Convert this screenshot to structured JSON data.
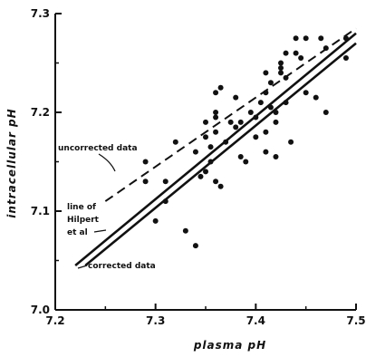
{
  "chart_data": {
    "type": "scatter",
    "title": "",
    "xlabel": "plasma pH",
    "ylabel": "intracellular pH",
    "xlim": [
      7.2,
      7.5
    ],
    "ylim": [
      7.0,
      7.3
    ],
    "xticks": [
      7.2,
      7.3,
      7.4,
      7.5
    ],
    "yticks": [
      7.0,
      7.1,
      7.2,
      7.3
    ],
    "xtick_labels": [
      "7.2",
      "7.3",
      "7.4",
      "7.5"
    ],
    "ytick_labels": [
      "7.0",
      "7.1",
      "7.2",
      "7.3"
    ],
    "grid": false,
    "legend": "none",
    "points": [
      {
        "x": 7.29,
        "y": 7.13
      },
      {
        "x": 7.29,
        "y": 7.15
      },
      {
        "x": 7.3,
        "y": 7.09
      },
      {
        "x": 7.31,
        "y": 7.11
      },
      {
        "x": 7.31,
        "y": 7.13
      },
      {
        "x": 7.32,
        "y": 7.17
      },
      {
        "x": 7.33,
        "y": 7.08
      },
      {
        "x": 7.34,
        "y": 7.065
      },
      {
        "x": 7.34,
        "y": 7.16
      },
      {
        "x": 7.345,
        "y": 7.135
      },
      {
        "x": 7.35,
        "y": 7.14
      },
      {
        "x": 7.35,
        "y": 7.175
      },
      {
        "x": 7.35,
        "y": 7.19
      },
      {
        "x": 7.355,
        "y": 7.15
      },
      {
        "x": 7.355,
        "y": 7.165
      },
      {
        "x": 7.36,
        "y": 7.18
      },
      {
        "x": 7.36,
        "y": 7.195
      },
      {
        "x": 7.36,
        "y": 7.2
      },
      {
        "x": 7.36,
        "y": 7.22
      },
      {
        "x": 7.365,
        "y": 7.225
      },
      {
        "x": 7.36,
        "y": 7.13
      },
      {
        "x": 7.365,
        "y": 7.125
      },
      {
        "x": 7.37,
        "y": 7.17
      },
      {
        "x": 7.375,
        "y": 7.19
      },
      {
        "x": 7.38,
        "y": 7.185
      },
      {
        "x": 7.38,
        "y": 7.215
      },
      {
        "x": 7.385,
        "y": 7.155
      },
      {
        "x": 7.385,
        "y": 7.19
      },
      {
        "x": 7.39,
        "y": 7.15
      },
      {
        "x": 7.395,
        "y": 7.2
      },
      {
        "x": 7.4,
        "y": 7.175
      },
      {
        "x": 7.4,
        "y": 7.195
      },
      {
        "x": 7.405,
        "y": 7.21
      },
      {
        "x": 7.41,
        "y": 7.16
      },
      {
        "x": 7.41,
        "y": 7.18
      },
      {
        "x": 7.41,
        "y": 7.22
      },
      {
        "x": 7.41,
        "y": 7.24
      },
      {
        "x": 7.415,
        "y": 7.205
      },
      {
        "x": 7.415,
        "y": 7.23
      },
      {
        "x": 7.42,
        "y": 7.155
      },
      {
        "x": 7.42,
        "y": 7.19
      },
      {
        "x": 7.42,
        "y": 7.2
      },
      {
        "x": 7.425,
        "y": 7.24
      },
      {
        "x": 7.425,
        "y": 7.245
      },
      {
        "x": 7.425,
        "y": 7.25
      },
      {
        "x": 7.43,
        "y": 7.21
      },
      {
        "x": 7.43,
        "y": 7.235
      },
      {
        "x": 7.43,
        "y": 7.26
      },
      {
        "x": 7.435,
        "y": 7.17
      },
      {
        "x": 7.44,
        "y": 7.26
      },
      {
        "x": 7.44,
        "y": 7.275
      },
      {
        "x": 7.445,
        "y": 7.255
      },
      {
        "x": 7.45,
        "y": 7.22
      },
      {
        "x": 7.45,
        "y": 7.275
      },
      {
        "x": 7.46,
        "y": 7.215
      },
      {
        "x": 7.465,
        "y": 7.275
      },
      {
        "x": 7.47,
        "y": 7.2
      },
      {
        "x": 7.47,
        "y": 7.265
      },
      {
        "x": 7.49,
        "y": 7.255
      },
      {
        "x": 7.49,
        "y": 7.275
      }
    ],
    "lines": [
      {
        "style": "dashed",
        "x": [
          7.25,
          7.5
        ],
        "y": [
          7.11,
          7.285
        ]
      },
      {
        "style": "solid",
        "x": [
          7.23,
          7.5
        ],
        "y": [
          7.045,
          7.27
        ]
      },
      {
        "style": "solid",
        "x": [
          7.22,
          7.5
        ],
        "y": [
          7.045,
          7.28
        ]
      }
    ],
    "annotations": [
      {
        "text": "uncorrected data"
      },
      {
        "text_lines": [
          "line of",
          "Hilpert",
          "et al"
        ]
      },
      {
        "text": "corrected data"
      }
    ]
  }
}
